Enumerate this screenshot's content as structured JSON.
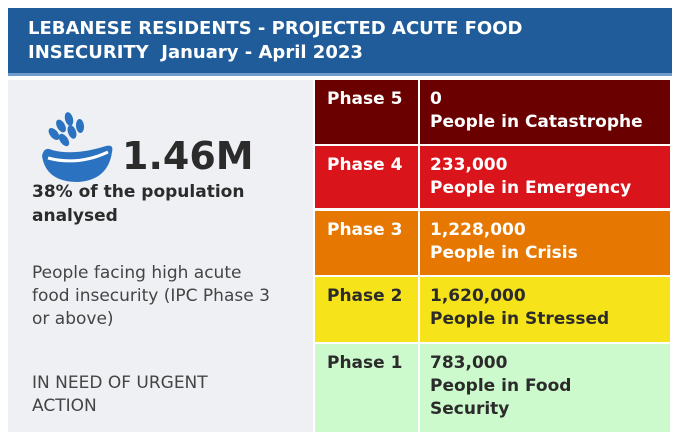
{
  "header": {
    "title": "LEBANESE RESIDENTS - PROJECTED ACUTE FOOD INSECURITY",
    "subtitle": "January - April 2023"
  },
  "summary": {
    "headline": "1.46M",
    "share": "38% of the population analysed",
    "description": "People facing high acute food insecurity (IPC Phase 3 or above)",
    "call": "IN NEED OF URGENT ACTION"
  },
  "phases": [
    {
      "label": "Phase 5",
      "value": "0",
      "description": "People in Catastrophe",
      "color": "#6a0000",
      "text_color": "#ffffff"
    },
    {
      "label": "Phase 4",
      "value": "233,000",
      "description": "People in Emergency",
      "color": "#d9141b",
      "text_color": "#ffffff"
    },
    {
      "label": "Phase 3",
      "value": "1,228,000",
      "description": "People in Crisis",
      "color": "#e67700",
      "text_color": "#ffffff"
    },
    {
      "label": "Phase 2",
      "value": "1,620,000",
      "description": "People in Stressed",
      "color": "#f6e319",
      "text_color": "#2b2b2b"
    },
    {
      "label": "Phase 1",
      "value": "783,000",
      "description": "People in Food Security",
      "color": "#cdfacd",
      "text_color": "#2b2b2b"
    }
  ]
}
